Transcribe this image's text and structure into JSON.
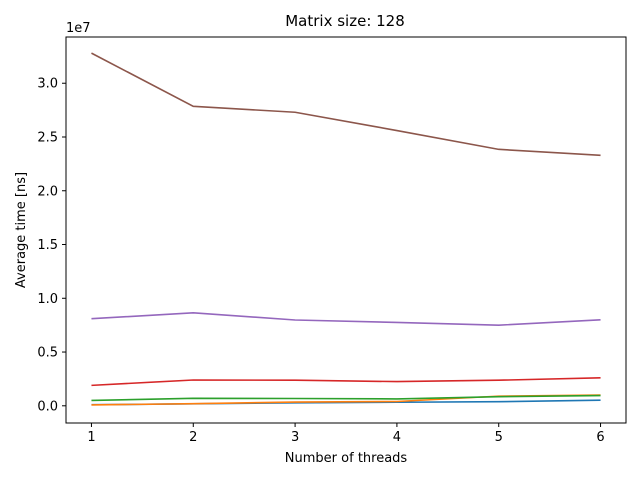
{
  "chart_data": {
    "type": "line",
    "title": "Matrix size: 128",
    "xlabel": "Number of threads",
    "ylabel": "Average time [ns]",
    "y_offset_label": "1e7",
    "y_scale": 10000000,
    "x": [
      1,
      2,
      3,
      4,
      5,
      6
    ],
    "xlim": [
      0.75,
      6.25
    ],
    "ylim": [
      -1600000,
      34300000
    ],
    "xticks": [
      1,
      2,
      3,
      4,
      5,
      6
    ],
    "yticks": [
      0,
      5000000,
      10000000,
      15000000,
      20000000,
      25000000,
      30000000
    ],
    "ytick_labels": [
      "0.0",
      "0.5",
      "1.0",
      "1.5",
      "2.0",
      "2.5",
      "3.0"
    ],
    "grid": false,
    "series": [
      {
        "color": "#1f77b4",
        "values": [
          100000,
          180000,
          280000,
          330000,
          380000,
          520000
        ]
      },
      {
        "color": "#ff7f0e",
        "values": [
          80000,
          200000,
          350000,
          400000,
          900000,
          1000000
        ]
      },
      {
        "color": "#2ca02c",
        "values": [
          500000,
          700000,
          680000,
          640000,
          850000,
          950000
        ]
      },
      {
        "color": "#d62728",
        "values": [
          1900000,
          2400000,
          2380000,
          2250000,
          2380000,
          2600000
        ]
      },
      {
        "color": "#9467bd",
        "values": [
          8100000,
          8650000,
          7980000,
          7750000,
          7500000,
          8000000
        ]
      },
      {
        "color": "#8c564b",
        "values": [
          32800000,
          27850000,
          27300000,
          25600000,
          23850000,
          23300000
        ]
      }
    ]
  }
}
